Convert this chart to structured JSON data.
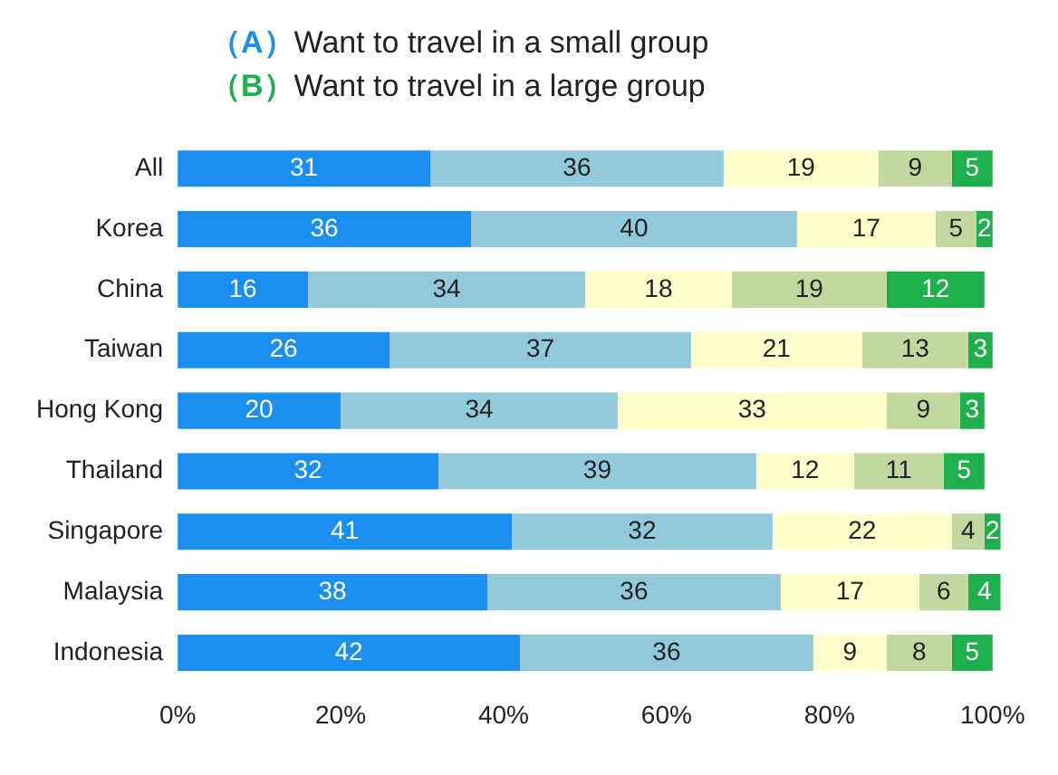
{
  "chart_data": {
    "type": "bar",
    "orientation": "horizontal",
    "stacked": true,
    "data_labels": true,
    "legend": false,
    "grid": false,
    "annotations": [
      "（A）Want to travel in a small group",
      "（B）Want to travel in a large group"
    ],
    "categories": [
      "All",
      "Korea",
      "China",
      "Taiwan",
      "Hong Kong",
      "Thailand",
      "Singapore",
      "Malaysia",
      "Indonesia"
    ],
    "series": [
      {
        "color": "#1a8ff0",
        "values": [
          31,
          36,
          16,
          26,
          20,
          32,
          41,
          38,
          42
        ]
      },
      {
        "color": "#92cadc",
        "values": [
          36,
          40,
          34,
          37,
          34,
          39,
          32,
          36,
          36
        ]
      },
      {
        "color": "#ffffcc",
        "values": [
          19,
          17,
          18,
          21,
          33,
          12,
          22,
          17,
          9
        ]
      },
      {
        "color": "#c3d7a0",
        "values": [
          9,
          5,
          19,
          13,
          9,
          11,
          4,
          6,
          8
        ]
      },
      {
        "color": "#1db04d",
        "values": [
          5,
          2,
          12,
          3,
          3,
          5,
          2,
          4,
          5
        ]
      }
    ],
    "xlim": [
      0,
      101
    ],
    "xticks": [
      {
        "value": 0,
        "label": "0%"
      },
      {
        "value": 20,
        "label": "20%"
      },
      {
        "value": 40,
        "label": "40%"
      },
      {
        "value": 60,
        "label": "60%"
      },
      {
        "value": 80,
        "label": "80%"
      },
      {
        "value": 100,
        "label": "100%"
      }
    ]
  }
}
